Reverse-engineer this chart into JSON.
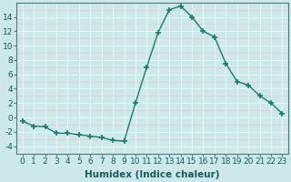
{
  "x": [
    0,
    1,
    2,
    3,
    4,
    5,
    6,
    7,
    8,
    9,
    10,
    11,
    12,
    13,
    14,
    15,
    16,
    17,
    18,
    19,
    20,
    21,
    22,
    23
  ],
  "y": [
    -0.5,
    -1.2,
    -1.3,
    -2.2,
    -2.2,
    -2.4,
    -2.6,
    -2.8,
    -3.2,
    -3.3,
    2.0,
    7.0,
    11.8,
    15.0,
    15.5,
    14.0,
    12.0,
    11.2,
    7.5,
    5.0,
    4.5,
    3.0,
    2.0,
    0.5
  ],
  "line_color": "#1a7a6e",
  "marker": "+",
  "marker_size": 4,
  "bg_color": "#cce8eb",
  "grid_white_color": "#e8f8f8",
  "grid_pink_color": "#e8c8c8",
  "xlabel": "Humidex (Indice chaleur)",
  "xlim": [
    -0.5,
    23.5
  ],
  "ylim": [
    -5,
    16
  ],
  "yticks": [
    -4,
    -2,
    0,
    2,
    4,
    6,
    8,
    10,
    12,
    14
  ],
  "xticks": [
    0,
    1,
    2,
    3,
    4,
    5,
    6,
    7,
    8,
    9,
    10,
    11,
    12,
    13,
    14,
    15,
    16,
    17,
    18,
    19,
    20,
    21,
    22,
    23
  ],
  "tick_fontsize": 6.5,
  "xlabel_fontsize": 7.5
}
